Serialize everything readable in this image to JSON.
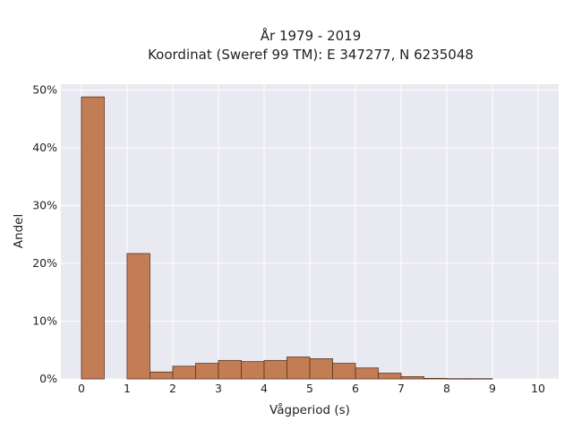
{
  "chart_data": {
    "type": "bar",
    "title": "År 1979 - 2019",
    "subtitle": "Koordinat (Sweref 99 TM): E 347277, N 6235048",
    "xlabel": "Vågperiod (s)",
    "ylabel": "Andel",
    "xlim": [
      -0.45,
      10.45
    ],
    "ylim": [
      0,
      51
    ],
    "x_ticks": [
      0,
      1,
      2,
      3,
      4,
      5,
      6,
      7,
      8,
      9,
      10
    ],
    "x_tick_labels": [
      "0",
      "1",
      "2",
      "3",
      "4",
      "5",
      "6",
      "7",
      "8",
      "9",
      "10"
    ],
    "y_ticks": [
      0,
      10,
      20,
      30,
      40,
      50
    ],
    "y_tick_labels": [
      "0%",
      "10%",
      "20%",
      "30%",
      "40%",
      "50%"
    ],
    "bin_width": 0.5,
    "bins": [
      {
        "x0": 0.0,
        "value": 48.8
      },
      {
        "x0": 1.0,
        "value": 21.7
      },
      {
        "x0": 1.5,
        "value": 1.2
      },
      {
        "x0": 2.0,
        "value": 2.2
      },
      {
        "x0": 2.5,
        "value": 2.7
      },
      {
        "x0": 3.0,
        "value": 3.2
      },
      {
        "x0": 3.5,
        "value": 3.0
      },
      {
        "x0": 4.0,
        "value": 3.2
      },
      {
        "x0": 4.5,
        "value": 3.8
      },
      {
        "x0": 5.0,
        "value": 3.5
      },
      {
        "x0": 5.5,
        "value": 2.7
      },
      {
        "x0": 6.0,
        "value": 1.9
      },
      {
        "x0": 6.5,
        "value": 1.0
      },
      {
        "x0": 7.0,
        "value": 0.4
      },
      {
        "x0": 7.5,
        "value": 0.1
      },
      {
        "x0": 8.0,
        "value": 0.05
      },
      {
        "x0": 8.5,
        "value": 0.05
      }
    ],
    "grid": true,
    "colors": {
      "bar_fill": "#c27d55",
      "bar_stroke": "#5a3420",
      "plot_background": "#e9e9f1",
      "grid": "#ffffff",
      "text": "#222222"
    }
  }
}
